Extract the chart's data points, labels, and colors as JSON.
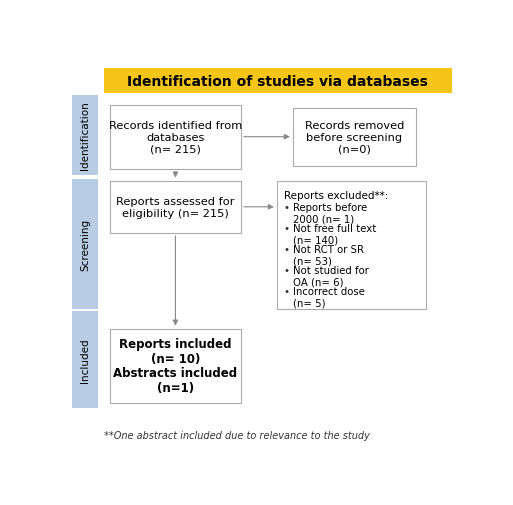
{
  "title": "Identification of studies via databases",
  "title_bg": "#F5C518",
  "title_fontsize": 10,
  "box_edge_color": "#AAAAAA",
  "box_fill_color": "#FFFFFF",
  "sidebar_fill_color": "#B8CCE4",
  "box1_text": "Records identified from\ndatabases\n(n= 215)",
  "box2_text": "Records removed\nbefore screening\n(n=0)",
  "box3_text": "Reports assessed for\neligibility (n= 215)",
  "box4_title": "Reports excluded**:",
  "box4_bullets": [
    "Reports before\n2000 (n= 1)",
    "Not free full text\n(n= 140)",
    "Not RCT or SR\n(n= 53)",
    "Not studied for\nOA (n= 6)",
    "Incorrect dose\n(n= 5)"
  ],
  "box5_line1": "Reports included",
  "box5_line2": "(n= 10)",
  "box5_line3": "Abstracts included",
  "box5_line4": "(n=1)",
  "footnote": "**One abstract included due to relevance to the study",
  "arrow_color": "#888888",
  "bg_color": "#FFFFFF"
}
